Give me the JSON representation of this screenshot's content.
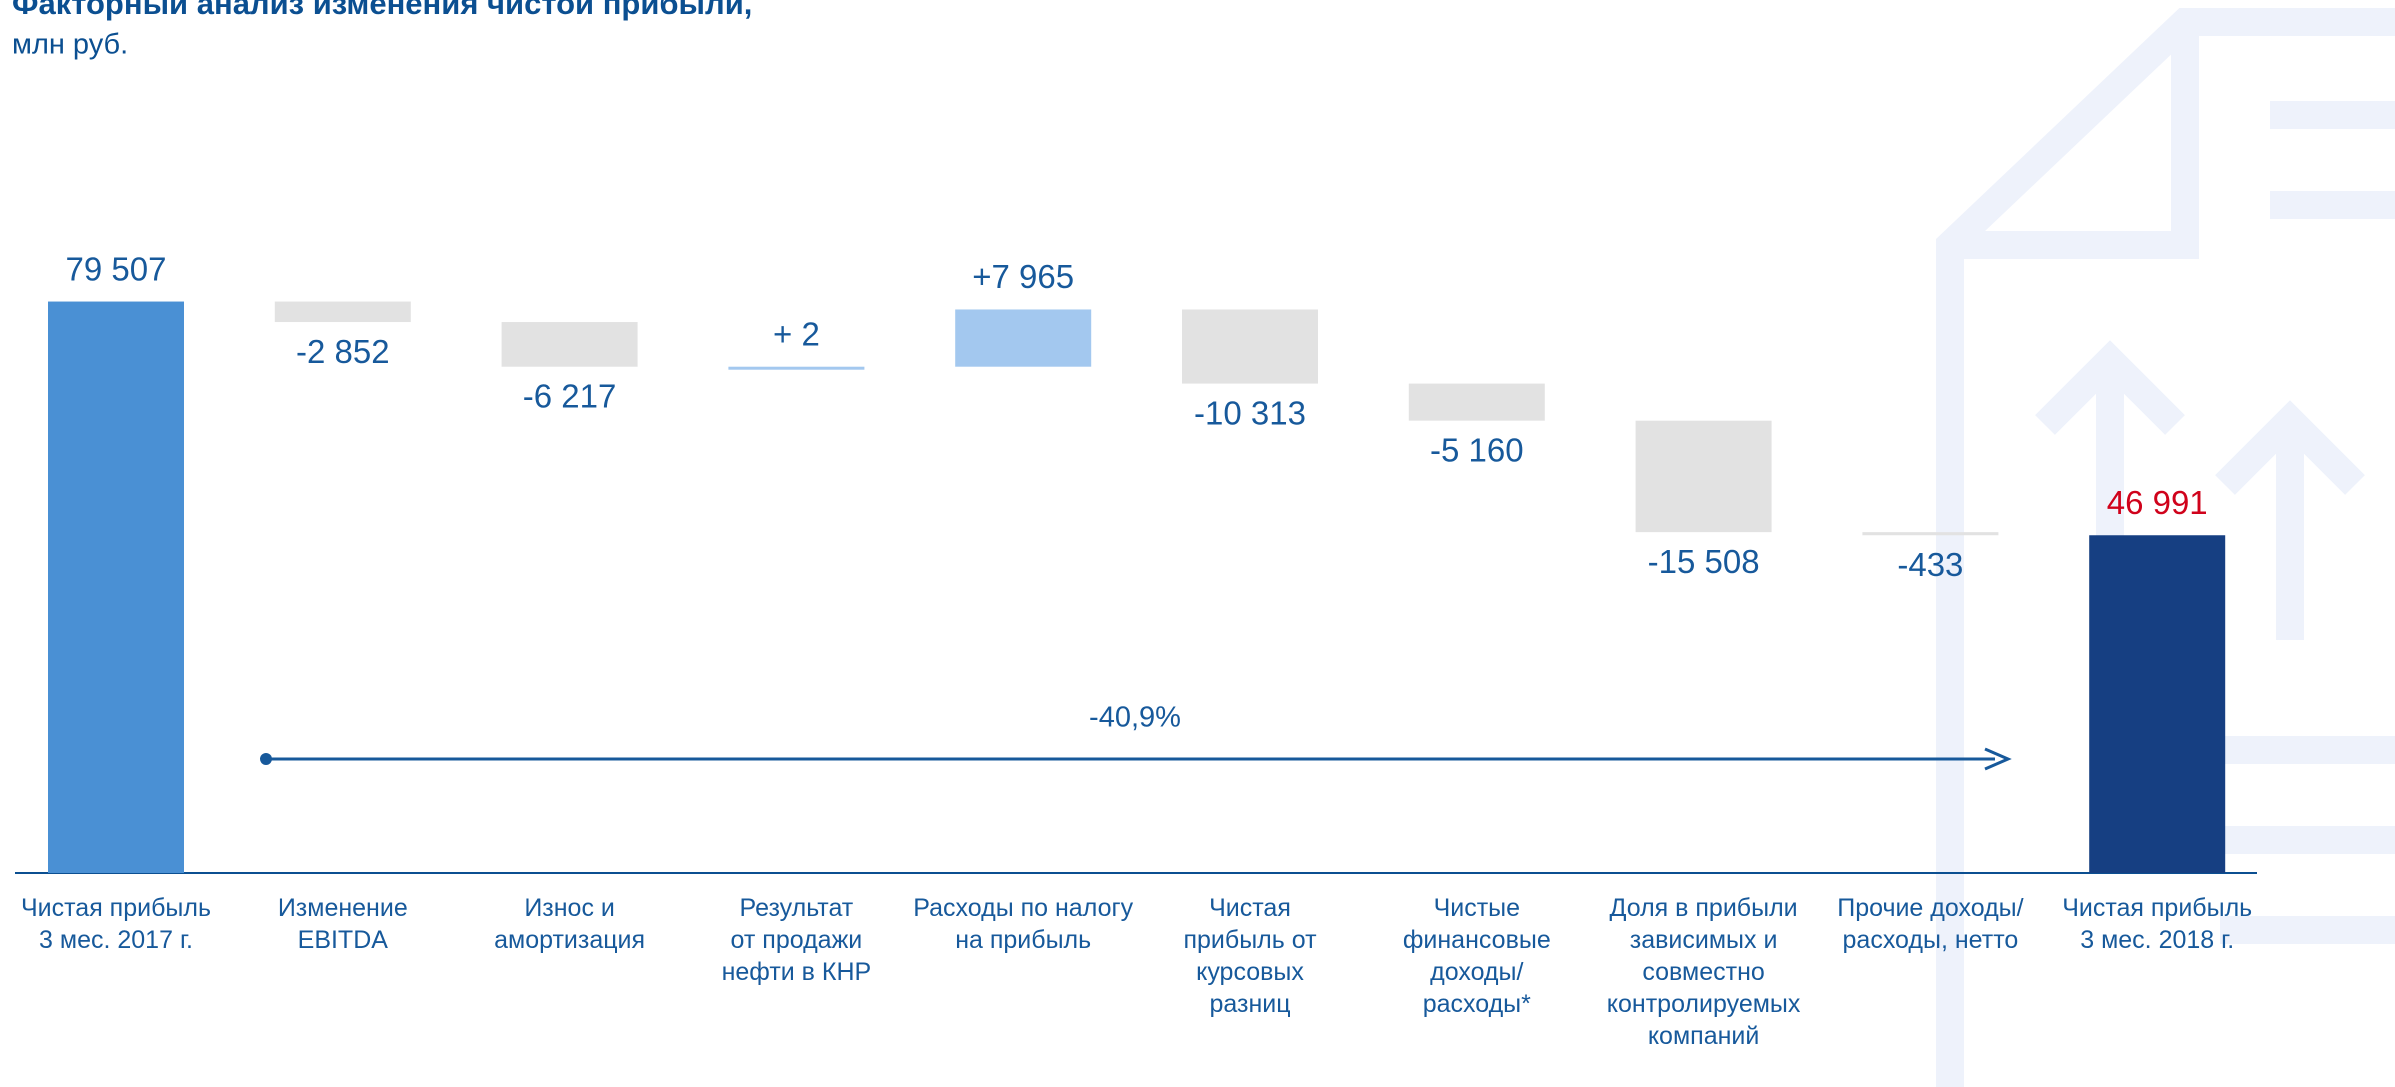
{
  "chart_data": {
    "type": "waterfall",
    "title": "Факторный анализ изменения чистой прибыли,",
    "subtitle": "млн руб.",
    "categories": [
      "Чистая прибыль\n3 мес. 2017 г.",
      "Изменение\nEBITDA",
      "Износ и\nамортизация",
      "Результат\nот продажи\nнефти в КНР",
      "Расходы по налогу\nна прибыль",
      "Чистая\nприбыль от\nкурсовых\nразниц",
      "Чистые\nфинансовые\nдоходы/\nрасходы*",
      "Доля в прибыли\nзависимых и\nсовместно\nконтролируемых\nкомпаний",
      "Прочие доходы/\nрасходы, нетто",
      "Чистая прибыль\n3 мес. 2018 г."
    ],
    "values": [
      79507,
      -2852,
      -6217,
      2,
      7965,
      -10313,
      -5160,
      -15508,
      -433,
      46991
    ],
    "value_labels": [
      "79 507",
      "-2 852",
      "-6 217",
      "+ 2",
      "+7 965",
      "-10 313",
      "-5 160",
      "-15 508",
      "-433",
      "46 991"
    ],
    "measure": [
      "total",
      "relative",
      "relative",
      "relative",
      "relative",
      "relative",
      "relative",
      "relative",
      "relative",
      "total"
    ],
    "colors": [
      "#4a90d4",
      "#e2e2e2",
      "#e2e2e2",
      "#a3c8ef",
      "#a3c8ef",
      "#e2e2e2",
      "#e2e2e2",
      "#e2e2e2",
      "#e2e2e2",
      "#163f82"
    ],
    "value_label_colors": [
      "#17599b",
      "#17599b",
      "#17599b",
      "#17599b",
      "#17599b",
      "#17599b",
      "#17599b",
      "#17599b",
      "#17599b",
      "#d0021b"
    ],
    "annotation": "-40,9%",
    "ylim": [
      0,
      80000
    ]
  }
}
